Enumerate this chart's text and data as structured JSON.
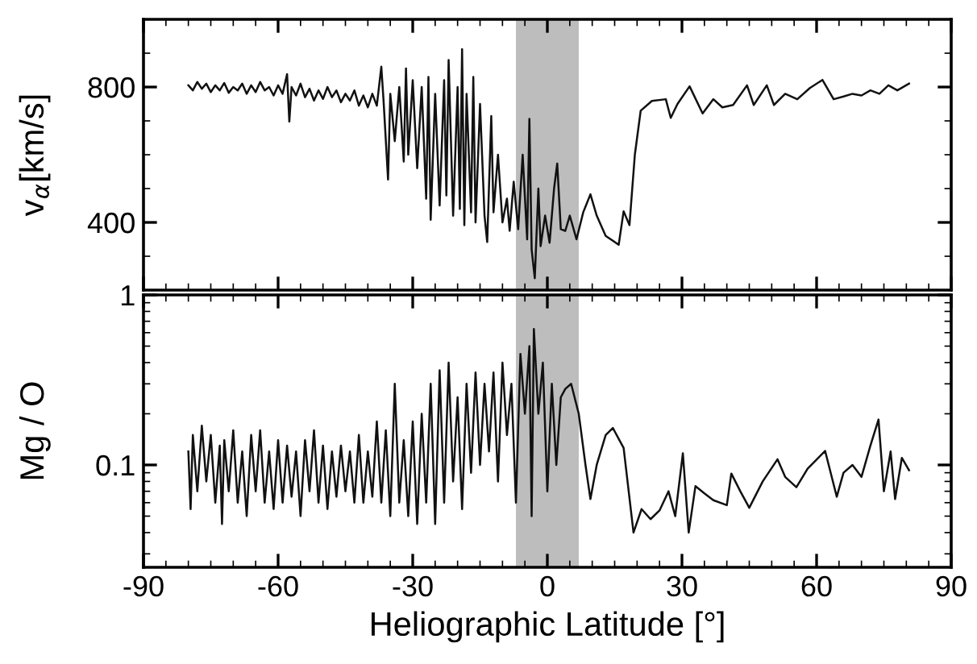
{
  "chart_data": [
    {
      "type": "line",
      "ylabel": "v$_{α}$[km/s]",
      "xlim": [
        -90,
        90
      ],
      "xticks": [
        -90,
        -60,
        -30,
        0,
        30,
        60,
        90
      ],
      "ylim": [
        200,
        1000
      ],
      "yticks": [
        400,
        800
      ],
      "tick_labels": "y",
      "grid": false,
      "legend": false,
      "bands": [
        {
          "axis": "x",
          "from": -7,
          "to": 7,
          "color": "#bdbdbd"
        }
      ],
      "series": [
        {
          "color": "#111111",
          "x": [
            -80,
            -79,
            -78,
            -77,
            -76,
            -75,
            -74,
            -73,
            -72,
            -71,
            -70,
            -69,
            -68,
            -67,
            -66,
            -65,
            -64,
            -63,
            -62,
            -61,
            -60,
            -59,
            -58,
            -57.5,
            -57,
            -56,
            -55,
            -54,
            -53,
            -52,
            -51,
            -50,
            -49,
            -48,
            -47,
            -46,
            -45,
            -44,
            -43,
            -42,
            -41,
            -40,
            -39,
            -38,
            -37,
            -36.5,
            -35.5,
            -35,
            -34,
            -33,
            -32,
            -31.5,
            -31,
            -30,
            -29,
            -28,
            -27,
            -26.5,
            -26,
            -25,
            -24,
            -23,
            -22.5,
            -22,
            -21,
            -20,
            -19.5,
            -19,
            -18.5,
            -18,
            -17,
            -16.5,
            -16,
            -15,
            -14,
            -13.4,
            -12.5,
            -12,
            -11,
            -10,
            -9,
            -8.4,
            -7.5,
            -6.5,
            -5.5,
            -4.5,
            -4,
            -3.5,
            -2.8,
            -2,
            -1.5,
            -0.5,
            0.5,
            1.5,
            2.2,
            3,
            4,
            5,
            6.5,
            8,
            9.6,
            11,
            13,
            15.9,
            17,
            18.3,
            19.5,
            20.8,
            23.3,
            26.4,
            27.5,
            29,
            31.7,
            34.6,
            37,
            39,
            41.4,
            44.5,
            46,
            48.9,
            50.5,
            53,
            55.7,
            58.5,
            61.3,
            63.8,
            66,
            68,
            70,
            72,
            74,
            76,
            78,
            80.6
          ],
          "values": [
            805,
            790,
            815,
            795,
            810,
            785,
            805,
            790,
            812,
            783,
            800,
            790,
            810,
            780,
            805,
            785,
            815,
            790,
            800,
            775,
            805,
            780,
            838,
            698,
            800,
            775,
            810,
            770,
            795,
            760,
            790,
            765,
            800,
            770,
            790,
            755,
            780,
            760,
            790,
            745,
            775,
            740,
            780,
            745,
            860,
            760,
            527,
            780,
            640,
            800,
            580,
            855,
            600,
            820,
            560,
            800,
            470,
            830,
            408,
            780,
            450,
            820,
            480,
            880,
            420,
            800,
            440,
            912,
            392,
            780,
            430,
            830,
            400,
            750,
            420,
            342,
            714,
            430,
            600,
            400,
            470,
            375,
            520,
            380,
            600,
            350,
            706,
            320,
            235,
            500,
            330,
            420,
            340,
            500,
            574,
            380,
            375,
            420,
            350,
            430,
            483,
            420,
            360,
            334,
            433,
            392,
            600,
            730,
            759,
            764,
            709,
            750,
            802,
            722,
            764,
            740,
            747,
            805,
            747,
            805,
            747,
            780,
            764,
            797,
            821,
            764,
            772,
            780,
            775,
            790,
            780,
            805,
            790,
            810
          ]
        }
      ]
    },
    {
      "type": "line",
      "ylabel": "Mg / O",
      "xlabel": "Heliographic Latitude [°]",
      "xlim": [
        -90,
        90
      ],
      "xticks": [
        -90,
        -60,
        -30,
        0,
        30,
        60,
        90
      ],
      "ylim": [
        0.025,
        1
      ],
      "yticks": [
        0.1,
        1
      ],
      "log": "y",
      "grid": false,
      "legend": false,
      "bands": [
        {
          "axis": "x",
          "from": -7,
          "to": 7,
          "color": "#bdbdbd"
        }
      ],
      "series": [
        {
          "color": "#111111",
          "x": [
            -80,
            -79.5,
            -79,
            -78,
            -77,
            -76,
            -75,
            -74,
            -73,
            -72.5,
            -72,
            -71,
            -70,
            -69,
            -68,
            -67,
            -66,
            -65,
            -64,
            -63,
            -62,
            -61,
            -60,
            -59,
            -58,
            -57,
            -56,
            -55,
            -54,
            -53,
            -52,
            -51,
            -50,
            -49,
            -48,
            -47,
            -46,
            -45,
            -44,
            -43,
            -42,
            -41,
            -40,
            -39,
            -38,
            -37,
            -36,
            -35,
            -34,
            -33,
            -32,
            -31,
            -30,
            -29,
            -28,
            -27,
            -26,
            -25,
            -24,
            -23,
            -22,
            -21,
            -20,
            -19,
            -18,
            -17,
            -16,
            -15,
            -14,
            -13,
            -12,
            -11,
            -10,
            -9,
            -8,
            -7,
            -6,
            -5,
            -4,
            -3.5,
            -3,
            -2,
            -1,
            0,
            1,
            2,
            3,
            4,
            5.3,
            7,
            8.5,
            9.6,
            11,
            13,
            14.6,
            17,
            19.2,
            21,
            23,
            25,
            27,
            28.5,
            30.2,
            31.5,
            33,
            35,
            37,
            40,
            41,
            43,
            45,
            48,
            51.3,
            53,
            55.5,
            58,
            61.9,
            64.5,
            66,
            68,
            70,
            72,
            73.8,
            75,
            76.5,
            77.5,
            79,
            80.6
          ],
          "values": [
            0.12,
            0.055,
            0.15,
            0.07,
            0.17,
            0.08,
            0.15,
            0.06,
            0.13,
            0.045,
            0.14,
            0.07,
            0.16,
            0.06,
            0.12,
            0.05,
            0.15,
            0.07,
            0.16,
            0.06,
            0.12,
            0.055,
            0.14,
            0.06,
            0.13,
            0.065,
            0.12,
            0.05,
            0.14,
            0.07,
            0.16,
            0.06,
            0.13,
            0.055,
            0.12,
            0.065,
            0.13,
            0.07,
            0.12,
            0.06,
            0.15,
            0.06,
            0.12,
            0.065,
            0.18,
            0.06,
            0.16,
            0.05,
            0.3,
            0.06,
            0.14,
            0.05,
            0.18,
            0.045,
            0.2,
            0.06,
            0.3,
            0.045,
            0.36,
            0.06,
            0.4,
            0.08,
            0.25,
            0.055,
            0.3,
            0.09,
            0.35,
            0.1,
            0.3,
            0.12,
            0.35,
            0.08,
            0.4,
            0.15,
            0.3,
            0.06,
            0.45,
            0.2,
            0.5,
            0.05,
            0.63,
            0.2,
            0.4,
            0.07,
            0.3,
            0.1,
            0.25,
            0.28,
            0.3,
            0.2,
            0.1,
            0.063,
            0.1,
            0.15,
            0.165,
            0.126,
            0.04,
            0.055,
            0.048,
            0.054,
            0.07,
            0.05,
            0.117,
            0.04,
            0.075,
            0.068,
            0.062,
            0.058,
            0.089,
            0.07,
            0.056,
            0.08,
            0.108,
            0.085,
            0.074,
            0.095,
            0.121,
            0.065,
            0.09,
            0.1,
            0.085,
            0.13,
            0.185,
            0.07,
            0.12,
            0.063,
            0.11,
            0.093
          ]
        }
      ]
    }
  ]
}
